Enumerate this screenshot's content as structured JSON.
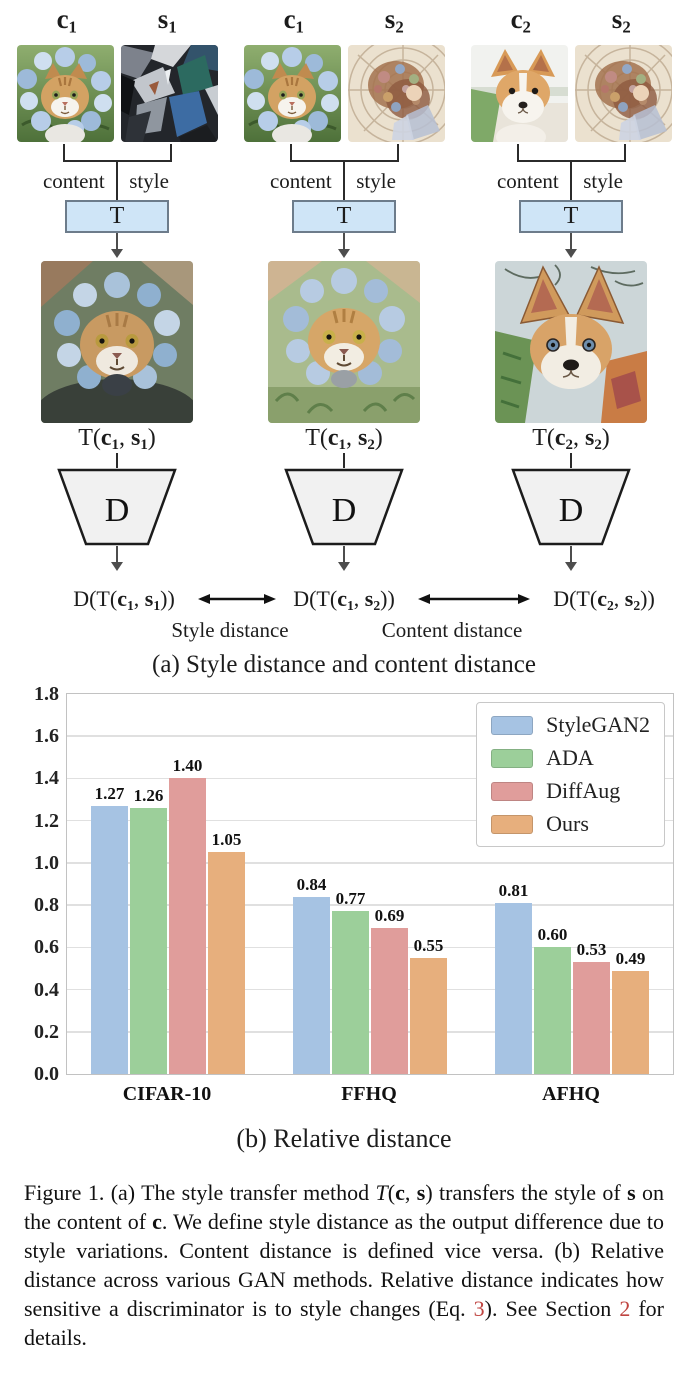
{
  "diagram": {
    "columns": [
      {
        "content_label": [
          {
            "t": "c",
            "bold": true
          },
          {
            "t": "1",
            "sub": true
          }
        ],
        "style_label": [
          {
            "t": "s",
            "bold": true
          },
          {
            "t": "1",
            "sub": true
          }
        ],
        "content_tag": "content",
        "style_tag": "style",
        "transform_box_label": "T",
        "result_label": [
          {
            "t": "T("
          },
          {
            "t": "c",
            "bold": true
          },
          {
            "t": "1",
            "sub": true
          },
          {
            "t": ", "
          },
          {
            "t": "s",
            "bold": true
          },
          {
            "t": "1",
            "sub": true
          },
          {
            "t": ")"
          }
        ],
        "discriminator_label": "D",
        "output_label": [
          {
            "t": "D(T("
          },
          {
            "t": "c",
            "bold": true
          },
          {
            "t": "1",
            "sub": true
          },
          {
            "t": ", "
          },
          {
            "t": "s",
            "bold": true
          },
          {
            "t": "1",
            "sub": true
          },
          {
            "t": "))"
          }
        ]
      },
      {
        "content_label": [
          {
            "t": "c",
            "bold": true
          },
          {
            "t": "1",
            "sub": true
          }
        ],
        "style_label": [
          {
            "t": "s",
            "bold": true
          },
          {
            "t": "2",
            "sub": true
          }
        ],
        "content_tag": "content",
        "style_tag": "style",
        "transform_box_label": "T",
        "result_label": [
          {
            "t": "T("
          },
          {
            "t": "c",
            "bold": true
          },
          {
            "t": "1",
            "sub": true
          },
          {
            "t": ", "
          },
          {
            "t": "s",
            "bold": true
          },
          {
            "t": "2",
            "sub": true
          },
          {
            "t": ")"
          }
        ],
        "discriminator_label": "D",
        "output_label": [
          {
            "t": "D(T("
          },
          {
            "t": "c",
            "bold": true
          },
          {
            "t": "1",
            "sub": true
          },
          {
            "t": ", "
          },
          {
            "t": "s",
            "bold": true
          },
          {
            "t": "2",
            "sub": true
          },
          {
            "t": "))"
          }
        ]
      },
      {
        "content_label": [
          {
            "t": "c",
            "bold": true
          },
          {
            "t": "2",
            "sub": true
          }
        ],
        "style_label": [
          {
            "t": "s",
            "bold": true
          },
          {
            "t": "2",
            "sub": true
          }
        ],
        "content_tag": "content",
        "style_tag": "style",
        "transform_box_label": "T",
        "result_label": [
          {
            "t": "T("
          },
          {
            "t": "c",
            "bold": true
          },
          {
            "t": "2",
            "sub": true
          },
          {
            "t": ", "
          },
          {
            "t": "s",
            "bold": true
          },
          {
            "t": "2",
            "sub": true
          },
          {
            "t": ")"
          }
        ],
        "discriminator_label": "D",
        "output_label": [
          {
            "t": "D(T("
          },
          {
            "t": "c",
            "bold": true
          },
          {
            "t": "2",
            "sub": true
          },
          {
            "t": ", "
          },
          {
            "t": "s",
            "bold": true
          },
          {
            "t": "2",
            "sub": true
          },
          {
            "t": "))"
          }
        ]
      }
    ],
    "style_distance_label": "Style distance",
    "content_distance_label": "Content distance",
    "panel_caption": "(a) Style distance and content distance"
  },
  "chart_data": {
    "type": "bar",
    "title": "",
    "categories": [
      "CIFAR-10",
      "FFHQ",
      "AFHQ"
    ],
    "series": [
      {
        "name": "StyleGAN2",
        "color": "#a6c3e3",
        "values": [
          1.27,
          0.84,
          0.81
        ]
      },
      {
        "name": "ADA",
        "color": "#9ccf9a",
        "values": [
          1.26,
          0.77,
          0.6
        ]
      },
      {
        "name": "DiffAug",
        "color": "#e09d9b",
        "values": [
          1.4,
          0.69,
          0.53
        ]
      },
      {
        "name": "Ours",
        "color": "#e7af7d",
        "values": [
          1.05,
          0.55,
          0.49
        ]
      }
    ],
    "xlabel": "",
    "ylabel": "",
    "ylim": [
      0,
      1.8
    ],
    "ytick_step": 0.2,
    "grid": "horizontal",
    "legend_position": "top-right",
    "panel_caption": "(b) Relative distance"
  },
  "figure_caption": {
    "segments": [
      {
        "t": "Figure 1. (a) The style transfer method "
      },
      {
        "t": "T",
        "italic": true
      },
      {
        "t": "("
      },
      {
        "t": "c",
        "bold": true
      },
      {
        "t": ", "
      },
      {
        "t": "s",
        "bold": true
      },
      {
        "t": ") transfers the style of "
      },
      {
        "t": "s",
        "bold": true
      },
      {
        "t": " on the content of "
      },
      {
        "t": "c",
        "bold": true
      },
      {
        "t": ". We define style distance as the output difference due to style variations. Content distance is defined vice versa. (b) Relative distance across various GAN methods. Relative distance indicates how sensitive a discriminator is to style changes (Eq. "
      },
      {
        "t": "3",
        "red": true
      },
      {
        "t": "). See Section "
      },
      {
        "t": "2",
        "red": true
      },
      {
        "t": " for details."
      }
    ]
  },
  "colors": {
    "t_box_fill": "#cfe5f7",
    "t_box_border": "#6d7c8b",
    "d_trapezoid_fill": "#f1f1f1",
    "diagram_line": "#2b2b2b",
    "arrow": "#4d4d4d",
    "reference_red": "#bf4440",
    "chart_border": "#c2c2c2",
    "gridline": "#e0e0e0"
  }
}
